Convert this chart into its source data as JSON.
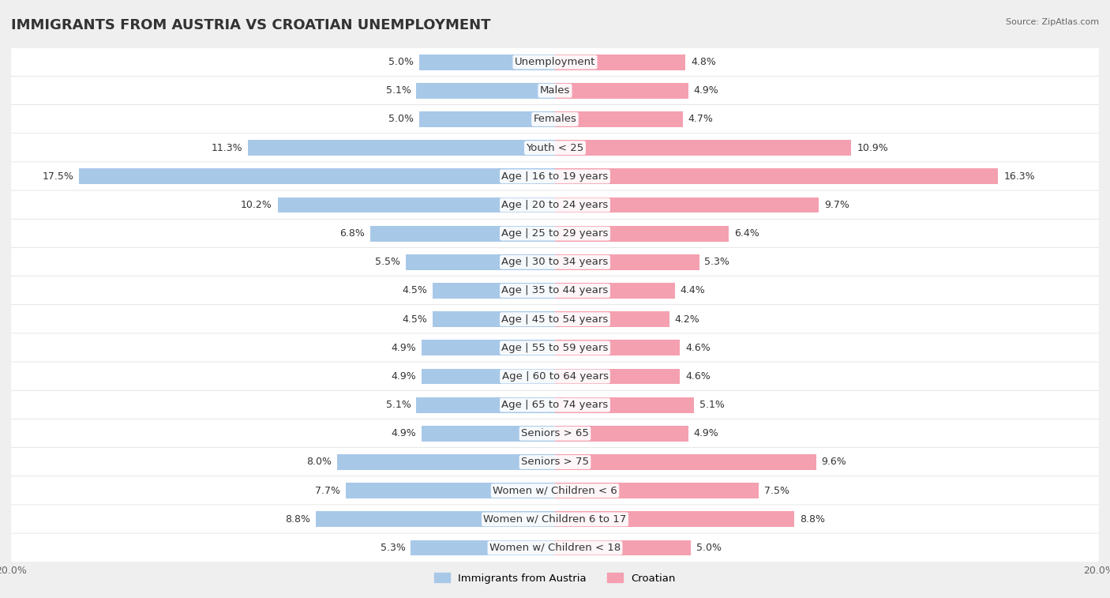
{
  "title": "IMMIGRANTS FROM AUSTRIA VS CROATIAN UNEMPLOYMENT",
  "source": "Source: ZipAtlas.com",
  "categories": [
    "Unemployment",
    "Males",
    "Females",
    "Youth < 25",
    "Age | 16 to 19 years",
    "Age | 20 to 24 years",
    "Age | 25 to 29 years",
    "Age | 30 to 34 years",
    "Age | 35 to 44 years",
    "Age | 45 to 54 years",
    "Age | 55 to 59 years",
    "Age | 60 to 64 years",
    "Age | 65 to 74 years",
    "Seniors > 65",
    "Seniors > 75",
    "Women w/ Children < 6",
    "Women w/ Children 6 to 17",
    "Women w/ Children < 18"
  ],
  "left_values": [
    5.0,
    5.1,
    5.0,
    11.3,
    17.5,
    10.2,
    6.8,
    5.5,
    4.5,
    4.5,
    4.9,
    4.9,
    5.1,
    4.9,
    8.0,
    7.7,
    8.8,
    5.3
  ],
  "right_values": [
    4.8,
    4.9,
    4.7,
    10.9,
    16.3,
    9.7,
    6.4,
    5.3,
    4.4,
    4.2,
    4.6,
    4.6,
    5.1,
    4.9,
    9.6,
    7.5,
    8.8,
    5.0
  ],
  "left_color": "#a8c8e8",
  "right_color": "#f4a0b0",
  "bg_color": "#efefef",
  "row_bg_color": "#ffffff",
  "axis_max": 20.0,
  "title_fontsize": 13,
  "label_fontsize": 9.5,
  "value_fontsize": 9,
  "legend_left_label": "Immigrants from Austria",
  "legend_right_label": "Croatian"
}
